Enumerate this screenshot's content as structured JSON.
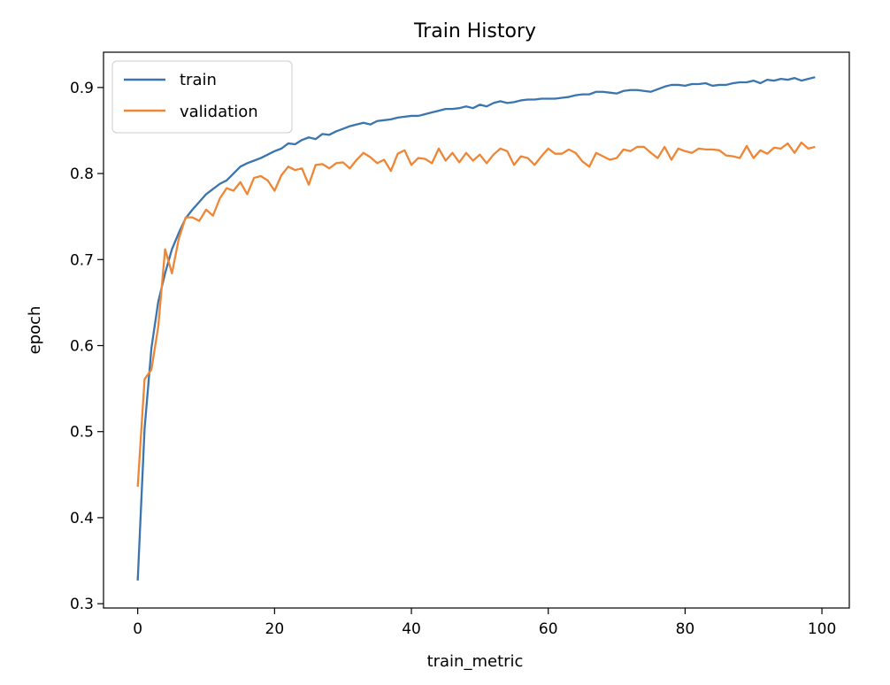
{
  "chart_data": {
    "type": "line",
    "title": "Train History",
    "xlabel": "train_metric",
    "ylabel": "epoch",
    "xlim": [
      -5,
      104
    ],
    "ylim": [
      0.295,
      0.941
    ],
    "x_ticks": [
      0,
      20,
      40,
      60,
      80,
      100
    ],
    "y_ticks": [
      0.3,
      0.4,
      0.5,
      0.6,
      0.7,
      0.8,
      0.9
    ],
    "grid": false,
    "legend_position": "top-left",
    "x": [
      0,
      1,
      2,
      3,
      4,
      5,
      6,
      7,
      8,
      9,
      10,
      11,
      12,
      13,
      14,
      15,
      16,
      17,
      18,
      19,
      20,
      21,
      22,
      23,
      24,
      25,
      26,
      27,
      28,
      29,
      30,
      31,
      32,
      33,
      34,
      35,
      36,
      37,
      38,
      39,
      40,
      41,
      42,
      43,
      44,
      45,
      46,
      47,
      48,
      49,
      50,
      51,
      52,
      53,
      54,
      55,
      56,
      57,
      58,
      59,
      60,
      61,
      62,
      63,
      64,
      65,
      66,
      67,
      68,
      69,
      70,
      71,
      72,
      73,
      74,
      75,
      76,
      77,
      78,
      79,
      80,
      81,
      82,
      83,
      84,
      85,
      86,
      87,
      88,
      89,
      90,
      91,
      92,
      93,
      94,
      95,
      96,
      97,
      98,
      99
    ],
    "series": [
      {
        "name": "train",
        "color": "#3b75af",
        "values": [
          0.327,
          0.503,
          0.597,
          0.651,
          0.684,
          0.712,
          0.731,
          0.748,
          0.758,
          0.767,
          0.776,
          0.782,
          0.788,
          0.792,
          0.8,
          0.808,
          0.812,
          0.815,
          0.818,
          0.822,
          0.826,
          0.829,
          0.835,
          0.834,
          0.839,
          0.842,
          0.84,
          0.846,
          0.845,
          0.849,
          0.852,
          0.855,
          0.857,
          0.859,
          0.857,
          0.861,
          0.862,
          0.863,
          0.865,
          0.866,
          0.867,
          0.867,
          0.869,
          0.871,
          0.873,
          0.875,
          0.875,
          0.876,
          0.878,
          0.876,
          0.88,
          0.878,
          0.882,
          0.884,
          0.882,
          0.883,
          0.885,
          0.886,
          0.886,
          0.887,
          0.887,
          0.887,
          0.888,
          0.889,
          0.891,
          0.892,
          0.892,
          0.895,
          0.895,
          0.894,
          0.893,
          0.896,
          0.897,
          0.897,
          0.896,
          0.895,
          0.898,
          0.901,
          0.903,
          0.903,
          0.902,
          0.904,
          0.904,
          0.905,
          0.902,
          0.903,
          0.903,
          0.905,
          0.906,
          0.906,
          0.908,
          0.905,
          0.909,
          0.908,
          0.91,
          0.909,
          0.911,
          0.908,
          0.91,
          0.912
        ]
      },
      {
        "name": "validation",
        "color": "#ef8636",
        "values": [
          0.436,
          0.561,
          0.572,
          0.622,
          0.712,
          0.684,
          0.724,
          0.749,
          0.749,
          0.745,
          0.758,
          0.751,
          0.771,
          0.783,
          0.78,
          0.79,
          0.776,
          0.795,
          0.797,
          0.792,
          0.78,
          0.798,
          0.808,
          0.804,
          0.806,
          0.787,
          0.81,
          0.811,
          0.806,
          0.812,
          0.813,
          0.806,
          0.816,
          0.824,
          0.819,
          0.812,
          0.816,
          0.803,
          0.823,
          0.827,
          0.81,
          0.818,
          0.817,
          0.812,
          0.829,
          0.815,
          0.824,
          0.813,
          0.824,
          0.815,
          0.822,
          0.812,
          0.822,
          0.829,
          0.826,
          0.81,
          0.82,
          0.818,
          0.81,
          0.82,
          0.829,
          0.823,
          0.823,
          0.828,
          0.824,
          0.814,
          0.808,
          0.824,
          0.82,
          0.816,
          0.818,
          0.828,
          0.826,
          0.831,
          0.831,
          0.824,
          0.818,
          0.831,
          0.816,
          0.829,
          0.826,
          0.824,
          0.829,
          0.828,
          0.828,
          0.827,
          0.821,
          0.82,
          0.818,
          0.832,
          0.818,
          0.827,
          0.823,
          0.83,
          0.829,
          0.835,
          0.824,
          0.836,
          0.829,
          0.831
        ]
      }
    ]
  }
}
